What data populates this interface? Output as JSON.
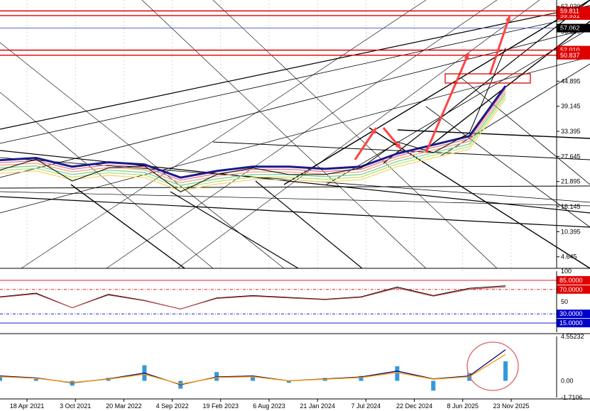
{
  "chart_data": [
    {
      "panel": "price",
      "type": "line",
      "price_axis": {
        "ticks": [
          "62.030",
          "56.280",
          "44.895",
          "39.145",
          "33.395",
          "27.645",
          "21.895",
          "16.145",
          "10.395",
          "4.645"
        ],
        "ylim": [
          2.0,
          63.5
        ]
      },
      "price_series": {
        "x": [
          0,
          8,
          16,
          24,
          32,
          40,
          48,
          56,
          64,
          72,
          80,
          88,
          96,
          104,
          112
        ],
        "values": [
          24.5,
          27.0,
          22.0,
          25.0,
          25.5,
          19.5,
          23.5,
          25.0,
          23.5,
          23.5,
          25.0,
          31.0,
          28.5,
          33.0,
          52.5
        ]
      },
      "ma_series": {
        "x": [
          0,
          8,
          16,
          24,
          32,
          40,
          48,
          56,
          64,
          72,
          80,
          88,
          96,
          104,
          112
        ],
        "values": [
          25.0,
          25.5,
          23.5,
          24.5,
          24.0,
          21.0,
          22.5,
          23.5,
          23.5,
          23.0,
          23.5,
          26.5,
          28.5,
          30.5,
          42.0
        ]
      },
      "levels": {
        "red": [
          {
            "value": "59.931",
            "y": 59.931
          },
          {
            "value": "52.010",
            "y": 52.01
          },
          {
            "value": "50.837",
            "y": 50.837
          },
          {
            "value": "59.811",
            "y": 61.0
          }
        ],
        "current": {
          "value": "57.062",
          "y": 57.062
        }
      }
    },
    {
      "panel": "rsi",
      "type": "line",
      "axis_ticks": [
        "100",
        "50"
      ],
      "ylim": [
        0,
        100
      ],
      "levels": [
        "85.0000",
        "70.0000",
        "30.0000",
        "15.0000"
      ],
      "level_values": [
        85,
        70,
        30,
        15
      ],
      "values": [
        58,
        64,
        40,
        62,
        52,
        38,
        56,
        60,
        57,
        54,
        58,
        74,
        60,
        72,
        76
      ]
    },
    {
      "panel": "macd",
      "type": "bar",
      "axis_ticks": [
        "4.55232",
        "0.00",
        "-1.7106"
      ],
      "ylim": [
        -1.7106,
        4.55232
      ],
      "histogram": [
        0.4,
        0.2,
        -0.5,
        0.3,
        1.6,
        -0.8,
        0.9,
        0.4,
        -0.2,
        0.3,
        0.5,
        1.5,
        -1.0,
        0.8,
        2.0
      ],
      "signal": [
        0.5,
        0.3,
        -0.2,
        0.2,
        0.8,
        -0.4,
        0.4,
        0.5,
        0.0,
        0.2,
        0.4,
        1.0,
        0.2,
        0.5,
        3.2
      ]
    }
  ],
  "x_axis": {
    "labels": [
      "18 Apr 2021",
      "3 Oct 2021",
      "20 Mar 2022",
      "4 Sep 2022",
      "19 Feb 2023",
      "6 Aug 2023",
      "21 Jan 2024",
      "7 Jul 2024",
      "22 Dec 2024",
      "8 Jun 2025",
      "23 Nov 2025"
    ]
  },
  "colors": {
    "price": "#000000",
    "moving_average": "#1a1a8c",
    "red_level": "#e00000",
    "arrow": "#ff4444",
    "rsi": "#000000",
    "rsi_ma": "#d04040",
    "macd_histogram": "#3399dd",
    "macd_signal": "#000080",
    "macd_line": "#ff9900"
  }
}
